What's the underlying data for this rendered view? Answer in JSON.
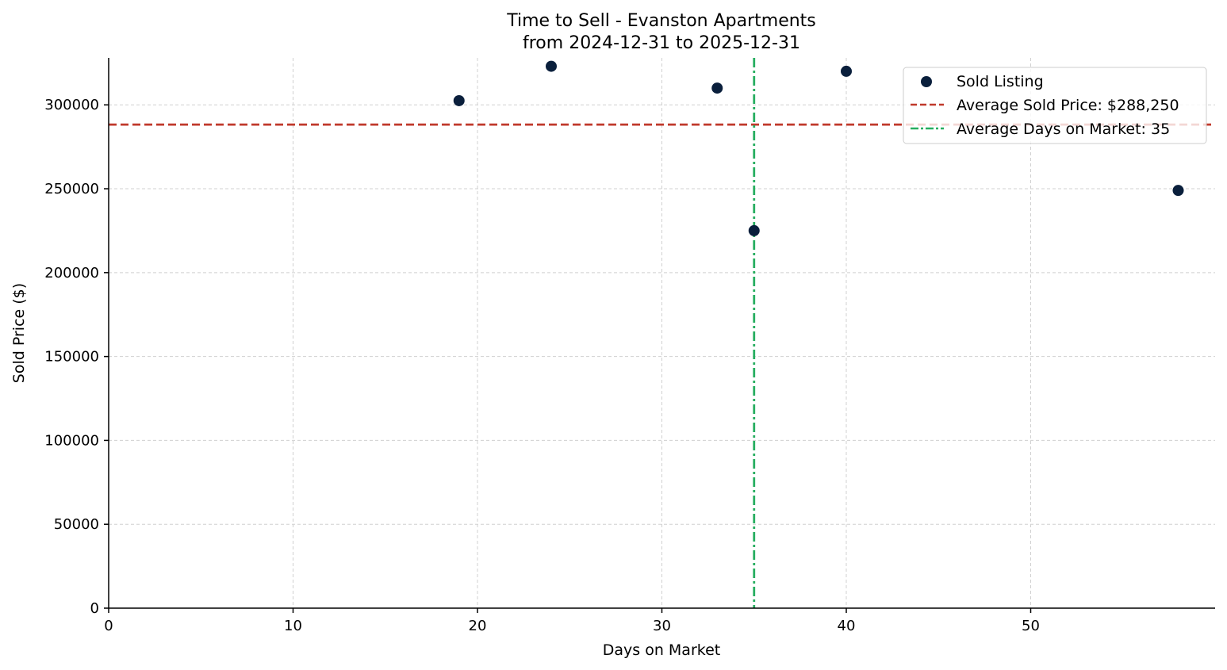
{
  "chart_data": {
    "type": "scatter",
    "title": "Time to Sell - Evanston Apartments",
    "subtitle": "from 2024-12-31 to 2025-12-31",
    "xlabel": "Days on Market",
    "ylabel": "Sold Price ($)",
    "xlim": [
      0,
      60
    ],
    "ylim": [
      0,
      328000
    ],
    "xticks": [
      0,
      10,
      20,
      30,
      40,
      50
    ],
    "yticks": [
      0,
      50000,
      100000,
      150000,
      200000,
      250000,
      300000
    ],
    "grid": true,
    "legend_position": "top-right",
    "series": [
      {
        "name": "Sold Listing",
        "color": "#0a1f3c",
        "points": [
          {
            "x": 19,
            "y": 302500
          },
          {
            "x": 24,
            "y": 323000
          },
          {
            "x": 33,
            "y": 310000
          },
          {
            "x": 35,
            "y": 225000
          },
          {
            "x": 40,
            "y": 320000
          },
          {
            "x": 58,
            "y": 249000
          }
        ]
      }
    ],
    "reference_lines": [
      {
        "name": "Average Sold Price: $288,250",
        "orientation": "horizontal",
        "value": 288250,
        "color": "#c0392b",
        "style": "dashed"
      },
      {
        "name": "Average Days on Market: 35",
        "orientation": "vertical",
        "value": 35,
        "color": "#27ae60",
        "style": "dashdot"
      }
    ]
  }
}
